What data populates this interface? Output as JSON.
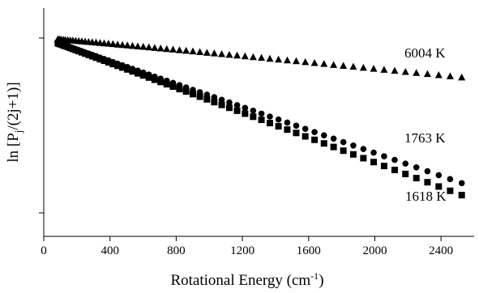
{
  "chart_data": {
    "type": "scatter",
    "xlabel": "Rotational Energy (cm",
    "xlabel_sup": "-1",
    "xlabel_end": ")",
    "ylabel": "ln [P",
    "ylabel_sub": "j",
    "ylabel_end": "/(2j+1)]",
    "xlim": [
      0,
      2600
    ],
    "ylim": [
      -3.2,
      0.35
    ],
    "x_ticks": [
      "0",
      "400",
      "800",
      "1200",
      "1600",
      "2000",
      "2400"
    ],
    "y_ticks_labeled": false,
    "grid": false,
    "series": [
      {
        "name": "6004 K",
        "marker": "triangle",
        "color": "#000000",
        "x": [
          85,
          95,
          105,
          118,
          130,
          145,
          160,
          176,
          193,
          211,
          230,
          250,
          271,
          293,
          316,
          340,
          365,
          391,
          418,
          446,
          475,
          505,
          536,
          568,
          601,
          635,
          670,
          706,
          743,
          781,
          820,
          860,
          901,
          943,
          986,
          1030,
          1075,
          1121,
          1168,
          1216,
          1265,
          1315,
          1366,
          1418,
          1471,
          1525,
          1580,
          1636,
          1693,
          1751,
          1810,
          1870,
          1931,
          1993,
          2056,
          2120,
          2185,
          2251,
          2318,
          2386,
          2455,
          2525
        ],
        "y": [
          -0.01,
          -0.012,
          -0.014,
          -0.017,
          -0.02,
          -0.023,
          -0.026,
          -0.029,
          -0.033,
          -0.036,
          -0.04,
          -0.045,
          -0.049,
          -0.054,
          -0.058,
          -0.064,
          -0.069,
          -0.074,
          -0.08,
          -0.086,
          -0.092,
          -0.098,
          -0.105,
          -0.112,
          -0.119,
          -0.126,
          -0.134,
          -0.142,
          -0.15,
          -0.158,
          -0.166,
          -0.175,
          -0.184,
          -0.193,
          -0.203,
          -0.212,
          -0.222,
          -0.233,
          -0.243,
          -0.254,
          -0.265,
          -0.276,
          -0.288,
          -0.3,
          -0.312,
          -0.324,
          -0.337,
          -0.349,
          -0.362,
          -0.376,
          -0.389,
          -0.403,
          -0.417,
          -0.431,
          -0.446,
          -0.461,
          -0.476,
          -0.491,
          -0.507,
          -0.523,
          -0.539,
          -0.555
        ]
      },
      {
        "name": "1763 K",
        "marker": "circle",
        "color": "#000000",
        "x": [
          85,
          95,
          105,
          118,
          130,
          145,
          160,
          176,
          193,
          211,
          230,
          250,
          271,
          293,
          316,
          340,
          365,
          391,
          418,
          446,
          475,
          505,
          536,
          568,
          601,
          635,
          670,
          706,
          743,
          781,
          820,
          860,
          901,
          943,
          986,
          1030,
          1075,
          1121,
          1168,
          1216,
          1265,
          1315,
          1366,
          1418,
          1471,
          1525,
          1580,
          1636,
          1693,
          1751,
          1810,
          1870,
          1931,
          1993,
          2056,
          2120,
          2185,
          2251,
          2318,
          2386,
          2455,
          2525
        ],
        "y": [
          -0.069,
          -0.078,
          -0.086,
          -0.096,
          -0.106,
          -0.118,
          -0.131,
          -0.144,
          -0.158,
          -0.173,
          -0.188,
          -0.205,
          -0.222,
          -0.24,
          -0.259,
          -0.279,
          -0.299,
          -0.32,
          -0.343,
          -0.366,
          -0.389,
          -0.414,
          -0.44,
          -0.466,
          -0.493,
          -0.521,
          -0.55,
          -0.579,
          -0.609,
          -0.64,
          -0.672,
          -0.705,
          -0.739,
          -0.773,
          -0.808,
          -0.844,
          -0.881,
          -0.919,
          -0.958,
          -0.997,
          -1.037,
          -1.078,
          -1.12,
          -1.163,
          -1.206,
          -1.25,
          -1.295,
          -1.341,
          -1.388,
          -1.435,
          -1.484,
          -1.533,
          -1.583,
          -1.634,
          -1.686,
          -1.738,
          -1.791,
          -1.845,
          -1.9,
          -1.956,
          -2.013,
          -2.07
        ]
      },
      {
        "name": "1618 K",
        "marker": "square",
        "color": "#000000",
        "x": [
          85,
          95,
          105,
          118,
          130,
          145,
          160,
          176,
          193,
          211,
          230,
          250,
          271,
          293,
          316,
          340,
          365,
          391,
          418,
          446,
          475,
          505,
          536,
          568,
          601,
          635,
          670,
          706,
          743,
          781,
          820,
          860,
          901,
          943,
          986,
          1030,
          1075,
          1121,
          1168,
          1216,
          1265,
          1315,
          1366,
          1418,
          1471,
          1525,
          1580,
          1636,
          1693,
          1751,
          1810,
          1870,
          1931,
          1993,
          2056,
          2120,
          2185,
          2251,
          2318,
          2386,
          2455,
          2525
        ],
        "y": [
          -0.075,
          -0.084,
          -0.093,
          -0.104,
          -0.115,
          -0.128,
          -0.142,
          -0.156,
          -0.171,
          -0.187,
          -0.204,
          -0.222,
          -0.24,
          -0.26,
          -0.28,
          -0.302,
          -0.324,
          -0.347,
          -0.371,
          -0.396,
          -0.421,
          -0.448,
          -0.476,
          -0.504,
          -0.534,
          -0.564,
          -0.595,
          -0.627,
          -0.659,
          -0.693,
          -0.728,
          -0.763,
          -0.8,
          -0.837,
          -0.875,
          -0.914,
          -0.954,
          -0.995,
          -1.037,
          -1.079,
          -1.123,
          -1.167,
          -1.213,
          -1.259,
          -1.306,
          -1.354,
          -1.403,
          -1.452,
          -1.503,
          -1.554,
          -1.607,
          -1.66,
          -1.714,
          -1.769,
          -1.825,
          -1.882,
          -1.939,
          -1.998,
          -2.057,
          -2.118,
          -2.179,
          -2.241
        ]
      }
    ]
  }
}
